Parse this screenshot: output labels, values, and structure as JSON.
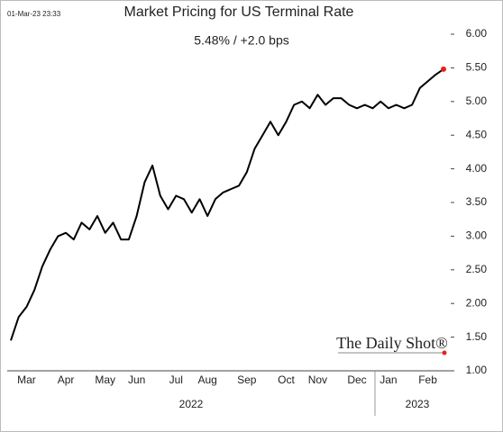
{
  "chart_data": {
    "type": "line",
    "title": "Market Pricing for US Terminal Rate",
    "subtitle": "5.48%  /  +2.0 bps",
    "timestamp": "01-Mar-23 23:33",
    "watermark": "The Daily Shot®",
    "categories": [
      null,
      null,
      "Mar",
      null,
      null,
      null,
      null,
      "Apr",
      null,
      null,
      null,
      null,
      "May",
      null,
      null,
      null,
      "Jun",
      null,
      null,
      null,
      null,
      "Jul",
      null,
      null,
      null,
      "Aug",
      null,
      null,
      null,
      null,
      "Sep",
      null,
      null,
      null,
      null,
      "Oct",
      null,
      null,
      null,
      "Nov",
      null,
      null,
      null,
      null,
      "Dec",
      null,
      null,
      null,
      "Jan",
      null,
      null,
      null,
      null,
      "Feb",
      null,
      null
    ],
    "values": [
      1.45,
      1.8,
      1.95,
      2.2,
      2.55,
      2.8,
      3.0,
      3.05,
      2.95,
      3.2,
      3.1,
      3.3,
      3.05,
      3.2,
      2.95,
      2.95,
      3.3,
      3.8,
      4.05,
      3.6,
      3.4,
      3.6,
      3.55,
      3.35,
      3.55,
      3.3,
      3.55,
      3.65,
      3.7,
      3.75,
      3.95,
      4.3,
      4.5,
      4.7,
      4.5,
      4.7,
      4.95,
      5.0,
      4.9,
      5.1,
      4.95,
      5.05,
      5.05,
      4.95,
      4.9,
      4.95,
      4.9,
      5.0,
      4.9,
      4.95,
      4.9,
      4.95,
      5.2,
      5.3,
      5.4,
      5.48
    ],
    "color": "#000000",
    "end_marker_color": "#e8201c",
    "year_labels": [
      "2022",
      "2023"
    ],
    "ylim": [
      1,
      6
    ],
    "yticks": [
      {
        "value": 1,
        "label": "1.00"
      },
      {
        "value": 1.5,
        "label": "1.50"
      },
      {
        "value": 2,
        "label": "2.00"
      },
      {
        "value": 2.5,
        "label": "2.50"
      },
      {
        "value": 3,
        "label": "3.00"
      },
      {
        "value": 3.5,
        "label": "3.50"
      },
      {
        "value": 4,
        "label": "4.00"
      },
      {
        "value": 4.5,
        "label": "4.50"
      },
      {
        "value": 5,
        "label": "5.00"
      },
      {
        "value": 5.5,
        "label": "5.50"
      },
      {
        "value": 6,
        "label": "6.00"
      }
    ],
    "y_axis_side": "right",
    "grid": false
  }
}
